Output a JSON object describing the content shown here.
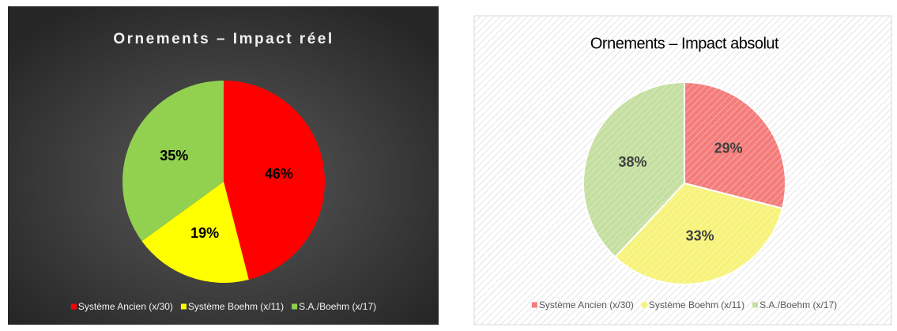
{
  "chart_data": [
    {
      "type": "pie",
      "title": "Ornements – Impact réel",
      "categories": [
        "Système Ancien (x/30)",
        "Système Boehm (x/11)",
        "S.A./Boehm (x/17)"
      ],
      "values": [
        46,
        19,
        35
      ],
      "value_labels": [
        "46%",
        "19%",
        "35%"
      ],
      "colors": [
        "#ff0000",
        "#ffff00",
        "#92d050"
      ],
      "legend": "bottom"
    },
    {
      "type": "pie",
      "title": "Ornements – Impact absolut",
      "categories": [
        "Système Ancien (x/30)",
        "Système Boehm (x/11)",
        "S.A./Boehm (x/17)"
      ],
      "values": [
        29,
        33,
        38
      ],
      "value_labels": [
        "29%",
        "33%",
        "38%"
      ],
      "colors": [
        "#f47d7b",
        "#f7f37a",
        "#c4dfa0"
      ],
      "legend": "bottom"
    }
  ]
}
